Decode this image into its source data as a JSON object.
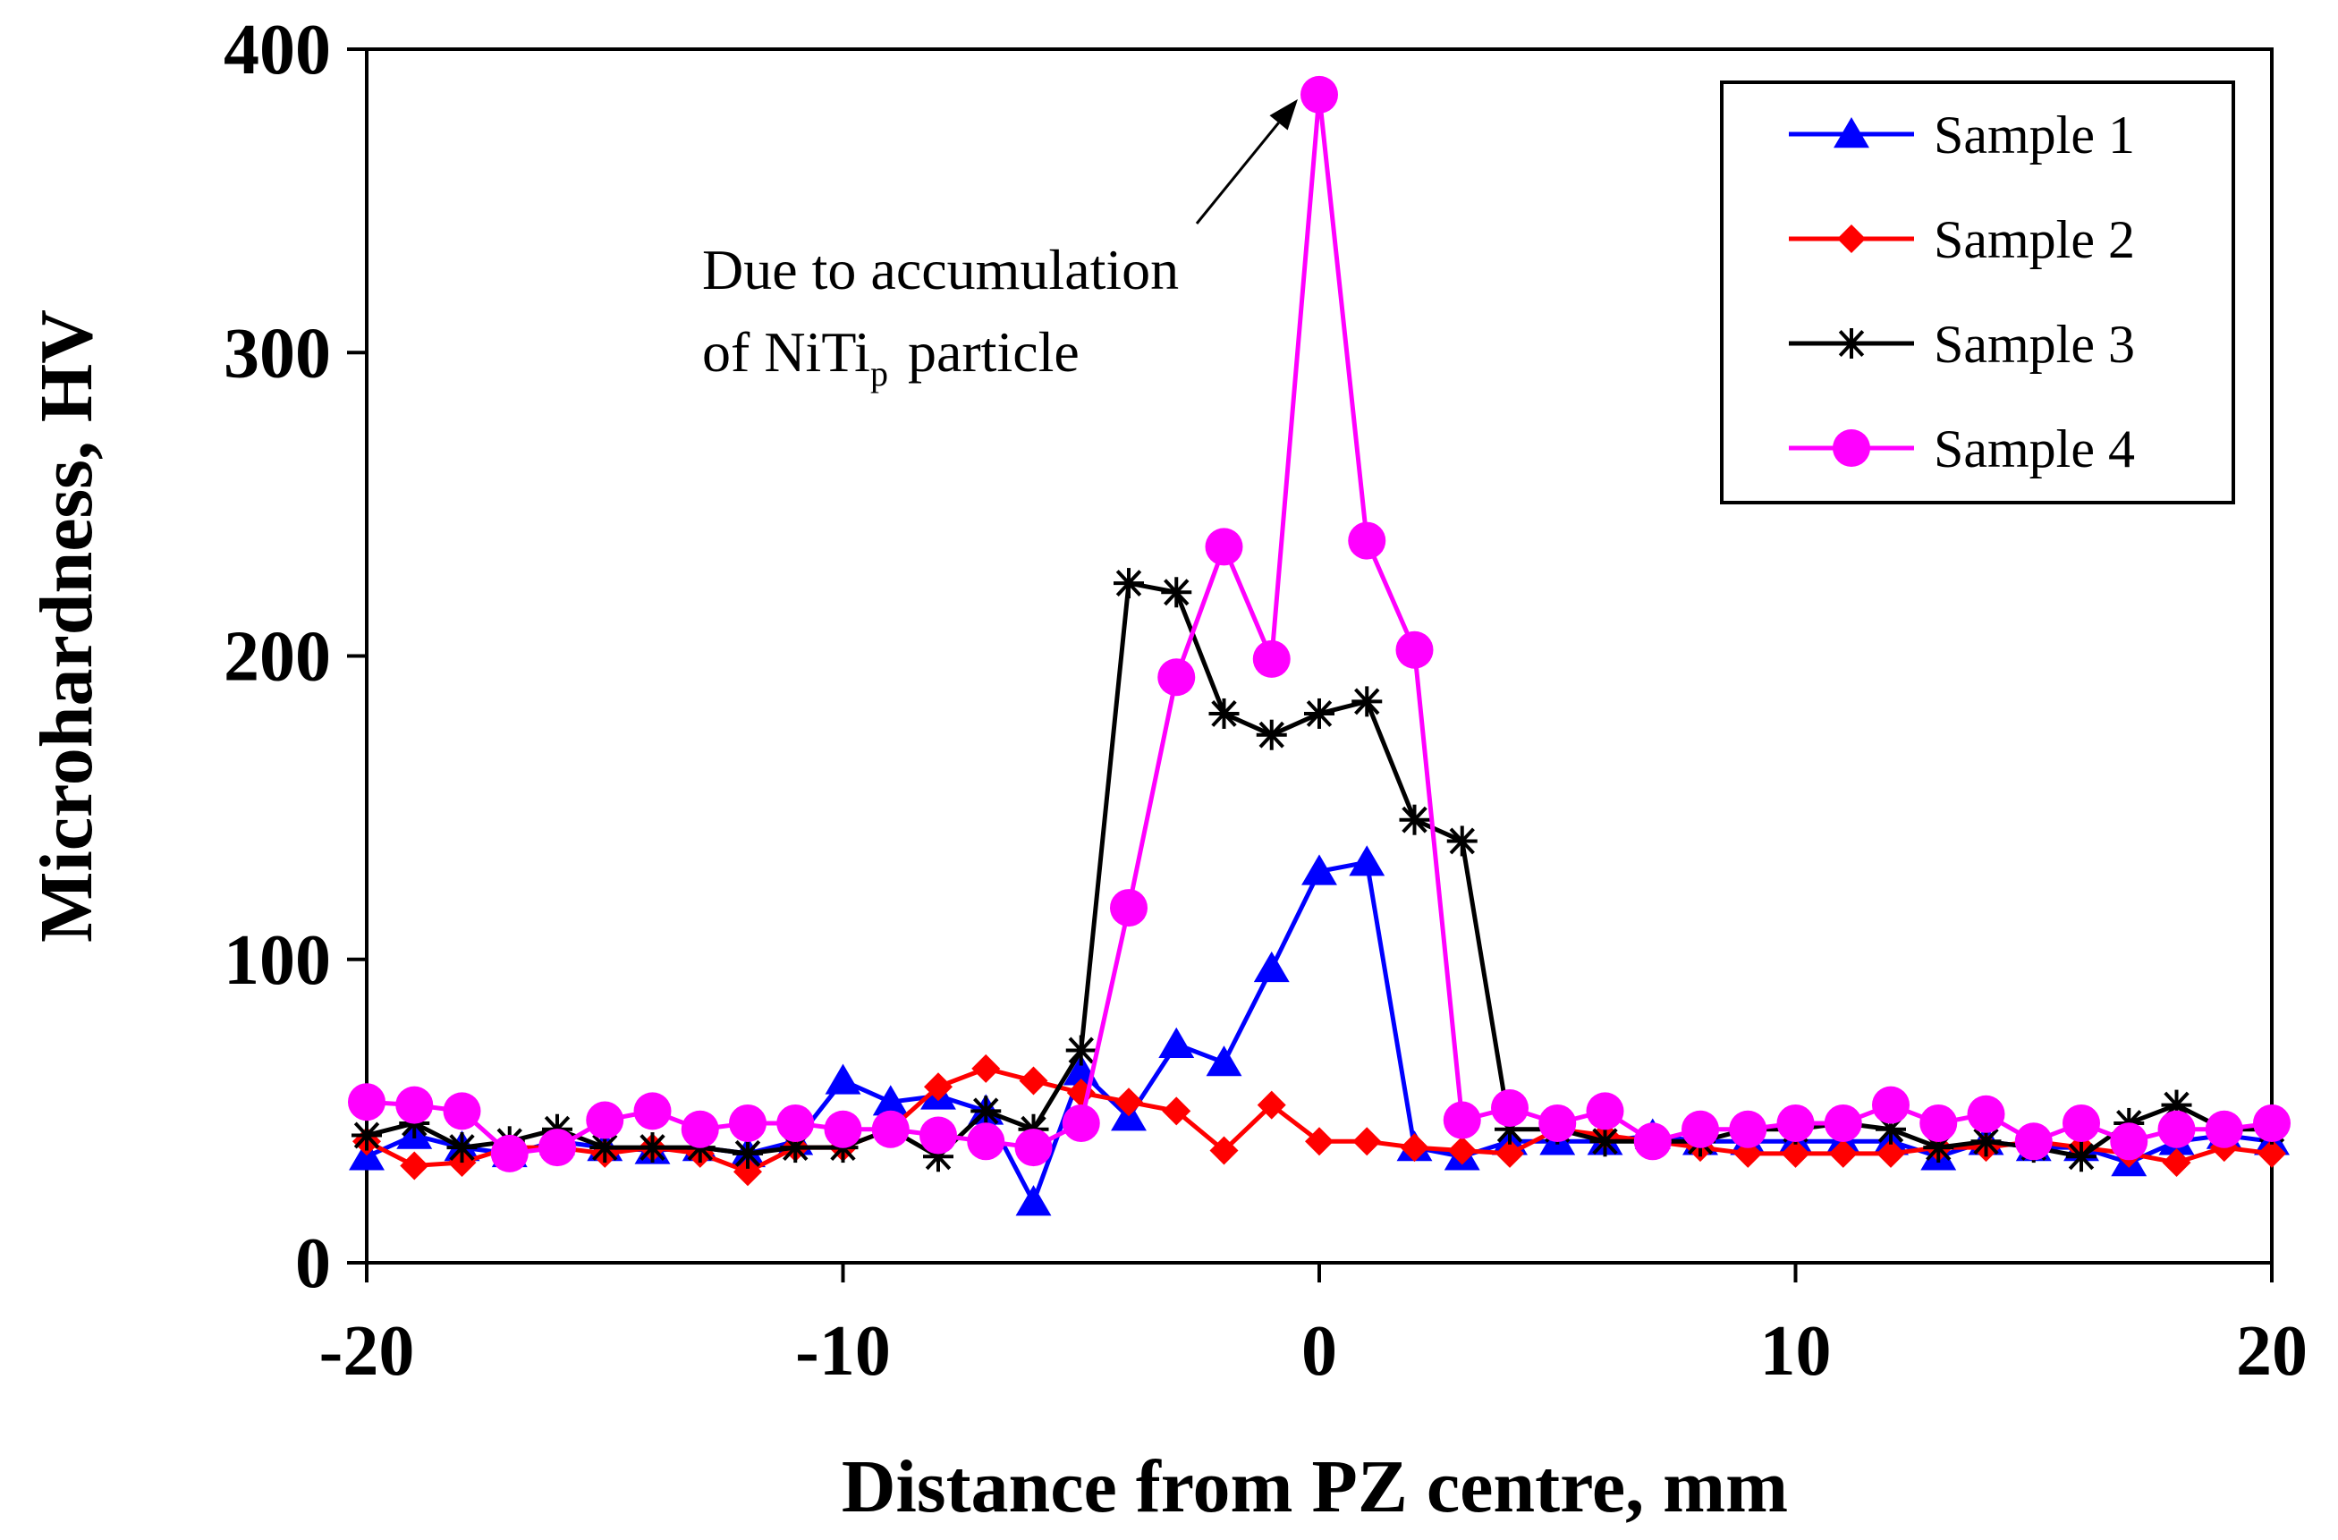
{
  "chart_data": {
    "type": "line",
    "xlabel": "Distance from PZ centre, mm",
    "ylabel": "Microhardness, HV",
    "xlim": [
      -20,
      20
    ],
    "ylim": [
      0,
      400
    ],
    "xticks": [
      -20,
      -10,
      0,
      10,
      20
    ],
    "yticks": [
      0,
      100,
      200,
      300,
      400
    ],
    "xtick_labels": [
      "-20",
      "-10",
      "0",
      "10",
      "20"
    ],
    "ytick_labels": [
      "0",
      "100",
      "200",
      "300",
      "400"
    ],
    "grid": false,
    "legend_position": "top-right",
    "x": [
      -20,
      -19,
      -18,
      -17,
      -16,
      -15,
      -14,
      -13,
      -12,
      -11,
      -10,
      -9,
      -8,
      -7,
      -6,
      -5,
      -4,
      -3,
      -2,
      -1,
      0,
      1,
      2,
      3,
      4,
      5,
      6,
      7,
      8,
      9,
      10,
      11,
      12,
      13,
      14,
      15,
      16,
      17,
      18,
      19,
      20
    ],
    "series": [
      {
        "name": "Sample 1",
        "color": "#0000ff",
        "marker": "triangle",
        "values": [
          35,
          42,
          38,
          36,
          40,
          38,
          37,
          38,
          36,
          40,
          60,
          53,
          55,
          50,
          20,
          63,
          48,
          72,
          66,
          97,
          129,
          132,
          38,
          35,
          40,
          40,
          40,
          42,
          40,
          40,
          40,
          40,
          40,
          35,
          40,
          38,
          38,
          33,
          40,
          42,
          40
        ]
      },
      {
        "name": "Sample 2",
        "color": "#ff0000",
        "marker": "diamond",
        "values": [
          40,
          32,
          33,
          38,
          38,
          36,
          38,
          36,
          30,
          38,
          38,
          44,
          58,
          64,
          60,
          56,
          53,
          50,
          37,
          52,
          40,
          40,
          38,
          37,
          36,
          44,
          42,
          40,
          38,
          36,
          36,
          36,
          36,
          38,
          38,
          40,
          38,
          36,
          33,
          38,
          36
        ]
      },
      {
        "name": "Sample 3",
        "color": "#000000",
        "marker": "asterisk",
        "values": [
          42,
          46,
          38,
          40,
          44,
          38,
          38,
          38,
          36,
          38,
          38,
          44,
          35,
          50,
          44,
          70,
          224,
          221,
          181,
          174,
          181,
          185,
          146,
          139,
          44,
          44,
          40,
          40,
          40,
          44,
          44,
          46,
          44,
          38,
          40,
          38,
          35,
          46,
          52,
          44,
          44
        ]
      },
      {
        "name": "Sample 4",
        "color": "#ff00ff",
        "marker": "circle",
        "values": [
          53,
          52,
          50,
          36,
          38,
          47,
          50,
          44,
          46,
          46,
          44,
          44,
          42,
          40,
          38,
          46,
          117,
          193,
          236,
          199,
          385,
          238,
          202,
          47,
          51,
          46,
          50,
          40,
          44,
          44,
          46,
          46,
          52,
          46,
          49,
          40,
          46,
          40,
          44,
          44,
          46
        ]
      }
    ],
    "annotation": {
      "line1": "Due to accumulation",
      "line2_prefix": "of NiTi",
      "line2_sub": "p",
      "line2_suffix": "particle",
      "target_x": 0,
      "target_y": 385
    }
  }
}
